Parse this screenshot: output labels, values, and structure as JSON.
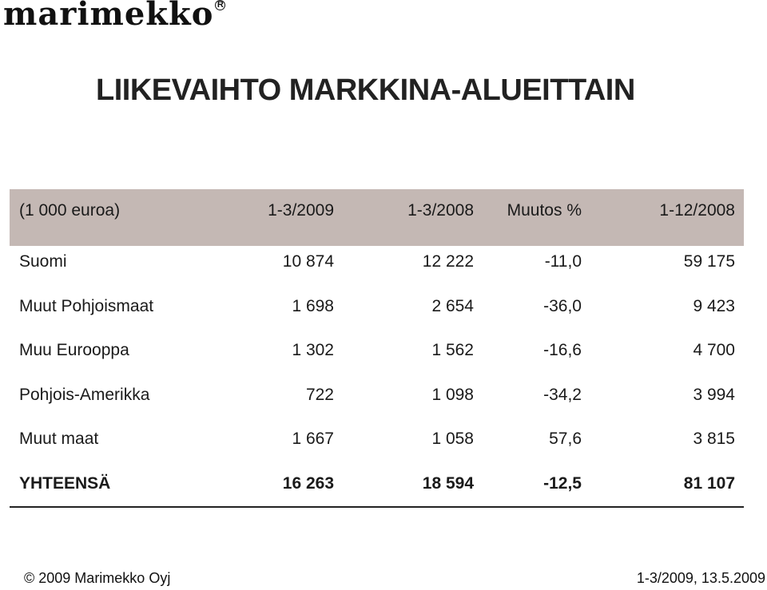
{
  "logo": {
    "text": "marimekko",
    "reg": "R"
  },
  "title": "LIIKEVAIHTO MARKKINA-ALUEITTAIN",
  "table": {
    "headers": [
      "(1 000 euroa)",
      "1-3/2009",
      "1-3/2008",
      "Muutos %",
      "1-12/2008"
    ],
    "rows": [
      [
        "Suomi",
        "10 874",
        "12 222",
        "-11,0",
        "59 175"
      ],
      [
        "Muut Pohjoismaat",
        "1 698",
        "2 654",
        "-36,0",
        "9 423"
      ],
      [
        "Muu Eurooppa",
        "1 302",
        "1 562",
        "-16,6",
        "4 700"
      ],
      [
        "Pohjois-Amerikka",
        "722",
        "1 098",
        "-34,2",
        "3 994"
      ],
      [
        "Muut maat",
        "1 667",
        "1 058",
        "57,6",
        "3 815"
      ]
    ],
    "total": [
      "YHTEENSÄ",
      "16 263",
      "18 594",
      "-12,5",
      "81 107"
    ]
  },
  "footer": {
    "copyright": "© 2009 Marimekko Oyj",
    "date": "1-3/2009, 13.5.2009"
  },
  "colors": {
    "header_bg": "#c4b8b4",
    "text": "#1a1a1a"
  }
}
